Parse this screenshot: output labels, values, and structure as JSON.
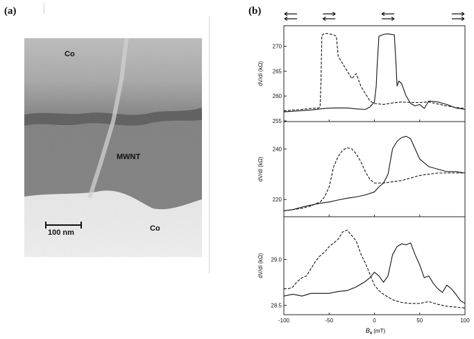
{
  "panel_a": {
    "label": "(a)",
    "labels": {
      "co_top": "Co",
      "mwnt": "MWNT",
      "co_bottom": "Co",
      "scalebar": "100 nm"
    }
  },
  "panel_b": {
    "label": "(b)",
    "ylabel": "dV/dI (kΩ)",
    "xlabel_main": "B",
    "xlabel_sub": "x",
    "xlabel_unit": "(mT)"
  },
  "chart_data": {
    "type": "line",
    "xlim": [
      -100,
      100
    ],
    "xticks": [
      -100,
      -50,
      0,
      50,
      100
    ],
    "xlabel": "Bx (mT)",
    "arrow_pairs_at_x": [
      -100,
      -50,
      15,
      100
    ],
    "panels": [
      {
        "ylabel": "dV/dI (kΩ)",
        "ylim": [
          255,
          274
        ],
        "yticks": [
          255,
          260,
          265,
          270
        ],
        "series": [
          {
            "style": "solid",
            "x": [
              -100,
              -85,
              -70,
              -55,
              -45,
              -30,
              -20,
              -10,
              -5,
              0,
              2,
              3,
              5,
              10,
              15,
              22,
              24,
              25,
              27,
              30,
              35,
              40,
              45,
              50,
              55,
              60,
              70,
              80,
              90,
              100
            ],
            "y": [
              256.8,
              257.0,
              257.2,
              257.5,
              257.6,
              257.6,
              257.4,
              257.3,
              257.8,
              258.8,
              262,
              266,
              272,
              272.4,
              272.5,
              272.3,
              266,
              262,
              263,
              262.5,
              260,
              258.5,
              258,
              258.3,
              257.5,
              259,
              258.8,
              258.3,
              257.6,
              257.3
            ]
          },
          {
            "style": "dashed",
            "x": [
              -100,
              -90,
              -80,
              -70,
              -62,
              -60,
              -59,
              -58,
              -55,
              -50,
              -45,
              -42,
              -40,
              -35,
              -30,
              -25,
              -20,
              -15,
              -10,
              -5,
              0,
              10,
              20,
              30,
              40,
              50,
              60,
              70,
              80,
              90,
              100
            ],
            "y": [
              257.0,
              257.2,
              257.3,
              257.5,
              257.6,
              257.8,
              263,
              272.2,
              272.6,
              272.5,
              272.3,
              272.0,
              268,
              266.5,
              265,
              263.5,
              264.5,
              262,
              260.5,
              259,
              258.5,
              258.3,
              258.6,
              258.8,
              258.7,
              258.7,
              258.8,
              258.4,
              258,
              257.7,
              257.5
            ]
          }
        ]
      },
      {
        "ylabel": "dV/dI (kΩ)",
        "ylim": [
          214,
          250
        ],
        "yticks": [
          220,
          240
        ],
        "series": [
          {
            "style": "solid",
            "x": [
              -100,
              -90,
              -80,
              -70,
              -60,
              -50,
              -40,
              -30,
              -20,
              -10,
              0,
              5,
              10,
              15,
              20,
              25,
              30,
              35,
              40,
              45,
              50,
              60,
              70,
              80,
              90,
              100
            ],
            "y": [
              215.5,
              216,
              217,
              217.8,
              218.5,
              219,
              219.8,
              220.5,
              221,
              221.8,
              223,
              225,
              226.5,
              230,
              240,
              243,
              244.5,
              245,
              244,
              240,
              236,
              233,
              232,
              231,
              231,
              230.5
            ]
          },
          {
            "style": "dashed",
            "x": [
              -100,
              -90,
              -80,
              -70,
              -60,
              -55,
              -50,
              -45,
              -40,
              -35,
              -30,
              -25,
              -20,
              -15,
              -10,
              -5,
              0,
              10,
              20,
              30,
              40,
              50,
              60,
              70,
              80,
              90,
              100
            ],
            "y": [
              215.5,
              216,
              216.5,
              217.5,
              219,
              221,
              225,
              233,
              237,
              239.5,
              240.5,
              240,
              238,
              235,
              231,
              228,
              226.5,
              226.5,
              227,
              227.5,
              228.5,
              229.5,
              230,
              230.5,
              230.5,
              230.5,
              230.5
            ]
          }
        ]
      },
      {
        "ylabel": "dV/dI (kΩ)",
        "ylim": [
          28.42,
          29.42
        ],
        "yticks": [
          28.5,
          29.0
        ],
        "series": [
          {
            "style": "solid",
            "x": [
              -100,
              -90,
              -80,
              -70,
              -60,
              -50,
              -40,
              -30,
              -20,
              -10,
              -5,
              0,
              5,
              10,
              15,
              20,
              25,
              30,
              35,
              40,
              45,
              50,
              55,
              60,
              65,
              70,
              75,
              80,
              85,
              90,
              95,
              100
            ],
            "y": [
              28.6,
              28.62,
              28.6,
              28.63,
              28.63,
              28.63,
              28.65,
              28.66,
              28.7,
              28.76,
              28.8,
              28.86,
              28.82,
              28.75,
              28.82,
              29.05,
              29.14,
              29.17,
              29.16,
              29.18,
              29.05,
              28.94,
              28.8,
              28.82,
              28.74,
              28.68,
              28.64,
              28.72,
              28.68,
              28.62,
              28.55,
              28.52
            ]
          },
          {
            "style": "dashed",
            "x": [
              -100,
              -95,
              -90,
              -85,
              -80,
              -75,
              -70,
              -65,
              -60,
              -55,
              -50,
              -45,
              -40,
              -35,
              -30,
              -25,
              -20,
              -15,
              -10,
              -5,
              0,
              5,
              10,
              20,
              30,
              40,
              50,
              60,
              70,
              80,
              90,
              100
            ],
            "y": [
              28.68,
              28.68,
              28.7,
              28.76,
              28.8,
              28.82,
              28.9,
              28.98,
              29.04,
              29.08,
              29.14,
              29.18,
              29.22,
              29.3,
              29.32,
              29.26,
              29.2,
              29.06,
              28.96,
              28.84,
              28.72,
              28.66,
              28.62,
              28.56,
              28.53,
              28.52,
              28.52,
              28.54,
              28.51,
              28.49,
              28.48,
              28.47
            ]
          }
        ]
      }
    ]
  }
}
